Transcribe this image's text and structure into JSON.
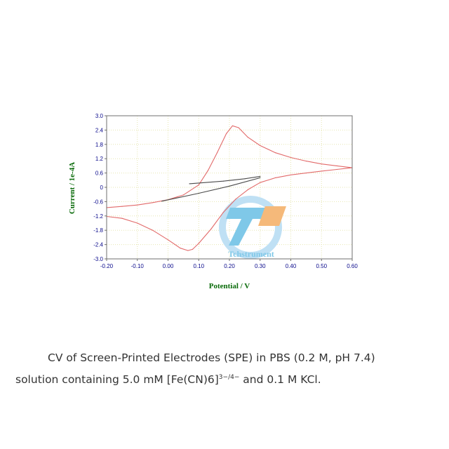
{
  "chart_data": {
    "type": "line",
    "title": "",
    "xlabel": "Potential / V",
    "ylabel": "Current / 1e-4A",
    "xlim": [
      -0.2,
      0.6
    ],
    "ylim": [
      -3.0,
      3.0
    ],
    "x_ticks": [
      "-0.20",
      "-0.10",
      "0.00",
      "0.10",
      "0.20",
      "0.30",
      "0.40",
      "0.50",
      "0.60"
    ],
    "y_ticks": [
      "3.0",
      "2.4",
      "1.8",
      "1.2",
      "0.6",
      "0",
      "-0.6",
      "-1.2",
      "-1.8",
      "-2.4",
      "-3.0"
    ],
    "grid": true,
    "series": [
      {
        "color": "#e26a6a",
        "points": [
          [
            -0.2,
            -0.85
          ],
          [
            -0.15,
            -0.8
          ],
          [
            -0.1,
            -0.74
          ],
          [
            -0.05,
            -0.64
          ],
          [
            0.0,
            -0.52
          ],
          [
            0.05,
            -0.32
          ],
          [
            0.1,
            0.1
          ],
          [
            0.13,
            0.7
          ],
          [
            0.16,
            1.45
          ],
          [
            0.19,
            2.25
          ],
          [
            0.21,
            2.58
          ],
          [
            0.23,
            2.5
          ],
          [
            0.26,
            2.1
          ],
          [
            0.3,
            1.75
          ],
          [
            0.35,
            1.45
          ],
          [
            0.4,
            1.25
          ],
          [
            0.45,
            1.1
          ],
          [
            0.5,
            0.98
          ],
          [
            0.55,
            0.9
          ],
          [
            0.6,
            0.82
          ],
          [
            0.55,
            0.75
          ],
          [
            0.5,
            0.68
          ],
          [
            0.45,
            0.6
          ],
          [
            0.4,
            0.52
          ],
          [
            0.35,
            0.4
          ],
          [
            0.3,
            0.2
          ],
          [
            0.26,
            -0.1
          ],
          [
            0.22,
            -0.5
          ],
          [
            0.18,
            -1.05
          ],
          [
            0.14,
            -1.75
          ],
          [
            0.1,
            -2.35
          ],
          [
            0.08,
            -2.6
          ],
          [
            0.065,
            -2.65
          ],
          [
            0.04,
            -2.55
          ],
          [
            0.0,
            -2.2
          ],
          [
            -0.05,
            -1.8
          ],
          [
            -0.1,
            -1.5
          ],
          [
            -0.15,
            -1.3
          ],
          [
            -0.2,
            -1.22
          ]
        ]
      },
      {
        "color": "#4a4a4a",
        "points": [
          [
            -0.02,
            -0.58
          ],
          [
            0.1,
            -0.25
          ],
          [
            0.2,
            0.05
          ],
          [
            0.3,
            0.4
          ]
        ]
      },
      {
        "color": "#4a4a4a",
        "points": [
          [
            0.07,
            0.15
          ],
          [
            0.18,
            0.26
          ],
          [
            0.25,
            0.36
          ],
          [
            0.3,
            0.46
          ]
        ]
      }
    ]
  },
  "watermark": {
    "text": "Tchstrument",
    "circle_color": "#bfe0f4",
    "mark_color_blue": "#7fc8e8",
    "mark_color_orange": "#f5b97a"
  },
  "caption": {
    "line1": "CV of Screen-Printed Electrodes (SPE) in PBS (0.2 M, pH 7.4)",
    "line2_before": "solution containing 5.0 mM [Fe(CN)6]",
    "line2_sup": "3−/4−",
    "line2_after": " and 0.1 M KCl."
  }
}
